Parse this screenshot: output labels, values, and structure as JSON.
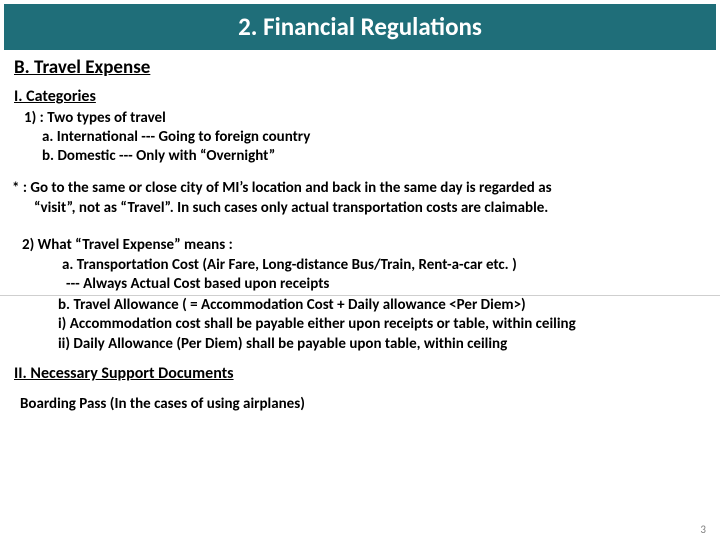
{
  "title": "2. Financial Regulations",
  "sectionB": "B. Travel Expense",
  "sectionI": "I.  Categories",
  "item1": "1) : Two types of travel",
  "item1a": "a. International --- Going to foreign country",
  "item1b": "b. Domestic --- Only with “Overnight”",
  "noteLine1": "* : Go to the same or close city of MI’s location and back in the same day is regarded as",
  "noteLine2": "“visit”, not as “Travel”.  In such cases only actual transportation costs are claimable.",
  "item2": "2) What “Travel Expense” means :",
  "item2a": "a. Transportation Cost (Air Fare, Long-distance Bus/Train, Rent-a-car etc. )",
  "item2aCont": "--- Always Actual Cost based upon receipts",
  "item2b": "b. Travel Allowance ( = Accommodation Cost + Daily allowance <Per Diem>)",
  "item2i": "i)   Accommodation cost shall be payable either upon receipts or table, within ceiling",
  "item2ii": "ii)  Daily Allowance (Per Diem) shall be payable upon table, within ceiling",
  "sectionII": "II.  Necessary Support Documents",
  "boarding": "Boarding Pass (In the cases of using airplanes)",
  "pageNumber": "3",
  "colors": {
    "titleBarBg": "#1f6e79",
    "titleBarText": "#ffffff",
    "bodyText": "#000000",
    "pageNum": "#808080",
    "hr": "#cfcfcf",
    "background": "#ffffff"
  }
}
